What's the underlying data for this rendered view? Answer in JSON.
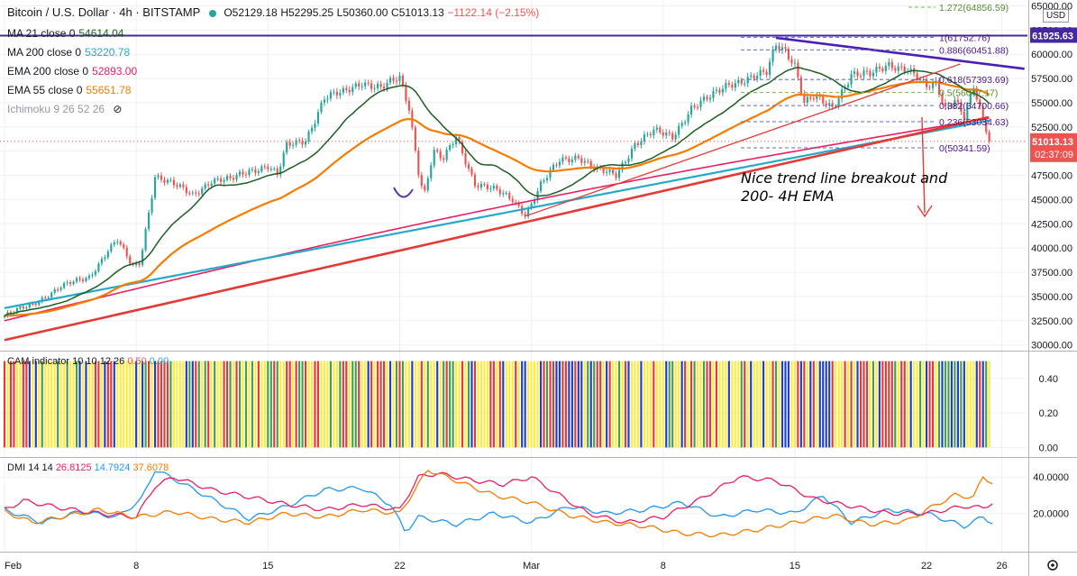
{
  "header": {
    "symbol": "Bitcoin / U.S. Dollar · 4h · BITSTAMP",
    "open": "O52129.18",
    "high": "H52295.25",
    "low": "L50360.00",
    "close": "C51013.13",
    "change": "−1122.14 (−2.15%)"
  },
  "indicators": [
    {
      "label": "MA 21 close 0",
      "value": "54614.04",
      "color": "#1b5e20"
    },
    {
      "label": "MA 200 close 0",
      "value": "53220.78",
      "color": "#26a9c9"
    },
    {
      "label": "EMA 200 close 0",
      "value": "52893.00",
      "color": "#e91e63"
    },
    {
      "label": "EMA 55 close 0",
      "value": "55651.78",
      "color": "#f57c00"
    },
    {
      "label": "Ichimoku 9 26 52 26",
      "value": "",
      "color": "#787b86"
    }
  ],
  "currency": "USD",
  "annotation": {
    "line1": "Nice trend line breakout and",
    "line2": "200- 4H EMA"
  },
  "price_badge": {
    "value": "51013.13",
    "countdown": "02:37:09",
    "color": "#ef5350"
  },
  "level_badge": {
    "value": "61925.63",
    "color": "#4527a0"
  },
  "cam": {
    "label": "CAM indicator 10 10 12 26",
    "v1": "0.50",
    "v2": "0.00"
  },
  "dmi": {
    "label": "DMI 14 14",
    "v1": "26.8125",
    "v2": "14.7924",
    "v3": "37.6078"
  },
  "colors": {
    "grid": "#eef0f3",
    "up": "#26a69a",
    "down": "#ef5350",
    "axis": "#131722",
    "fib_gold": "#7cb342",
    "fib_label": "#4a148c"
  },
  "chart_data": {
    "type": "candlestick",
    "title": "Bitcoin / U.S. Dollar · 4h · BITSTAMP",
    "x_tick_labels": [
      "Feb",
      "8",
      "15",
      "22",
      "Mar",
      "8",
      "15",
      "22",
      "26"
    ],
    "x_tick_days": [
      1,
      8,
      15,
      22,
      29,
      36,
      43,
      50,
      54
    ],
    "x_domain_days": [
      1,
      55.6
    ],
    "y_tick_values": [
      30000,
      32500,
      35000,
      37500,
      40000,
      42500,
      45000,
      47500,
      50000,
      52500,
      55000,
      57500,
      60000,
      62500,
      65000
    ],
    "ylim": [
      29500,
      65600
    ],
    "price_anchors": [
      [
        1.0,
        33000
      ],
      [
        2.5,
        34200
      ],
      [
        4.0,
        36000
      ],
      [
        5.5,
        37000
      ],
      [
        6.5,
        39800
      ],
      [
        7.0,
        40800
      ],
      [
        7.8,
        38000
      ],
      [
        8.2,
        38500
      ],
      [
        9.0,
        47500
      ],
      [
        10.0,
        46500
      ],
      [
        11.0,
        45500
      ],
      [
        12.0,
        47000
      ],
      [
        13.0,
        47000
      ],
      [
        14.0,
        48000
      ],
      [
        15.0,
        48500
      ],
      [
        15.5,
        47500
      ],
      [
        16.0,
        50500
      ],
      [
        17.0,
        51200
      ],
      [
        18.0,
        55500
      ],
      [
        19.0,
        56000
      ],
      [
        20.0,
        57200
      ],
      [
        21.0,
        56500
      ],
      [
        22.0,
        57500
      ],
      [
        22.5,
        54500
      ],
      [
        23.0,
        48000
      ],
      [
        23.3,
        45500
      ],
      [
        23.8,
        50000
      ],
      [
        24.3,
        49000
      ],
      [
        25.0,
        51500
      ],
      [
        26.0,
        46700
      ],
      [
        27.0,
        46000
      ],
      [
        28.0,
        45000
      ],
      [
        28.7,
        43500
      ],
      [
        29.5,
        46500
      ],
      [
        30.5,
        49000
      ],
      [
        31.5,
        49500
      ],
      [
        32.5,
        48000
      ],
      [
        33.5,
        47500
      ],
      [
        34.5,
        50800
      ],
      [
        35.5,
        52000
      ],
      [
        36.5,
        51500
      ],
      [
        37.5,
        54500
      ],
      [
        38.5,
        55500
      ],
      [
        39.5,
        57000
      ],
      [
        40.5,
        57500
      ],
      [
        41.5,
        58000
      ],
      [
        42.0,
        61000
      ],
      [
        42.5,
        60500
      ],
      [
        43.0,
        59000
      ],
      [
        43.5,
        55000
      ],
      [
        44.0,
        55500
      ],
      [
        45.0,
        54500
      ],
      [
        46.0,
        58000
      ],
      [
        47.0,
        57800
      ],
      [
        48.0,
        59000
      ],
      [
        49.0,
        58500
      ],
      [
        49.5,
        57500
      ],
      [
        50.0,
        56500
      ],
      [
        50.5,
        57000
      ],
      [
        51.0,
        54500
      ],
      [
        51.5,
        55500
      ],
      [
        52.0,
        53500
      ],
      [
        52.5,
        56500
      ],
      [
        53.0,
        53000
      ],
      [
        53.4,
        51013
      ]
    ],
    "fib_levels": [
      {
        "ratio": "1.272",
        "price": 64856.59
      },
      {
        "ratio": "1",
        "price": 61752.76
      },
      {
        "ratio": "0.886",
        "price": 60451.88
      },
      {
        "ratio": "0.618",
        "price": 57393.69
      },
      {
        "ratio": "0.5",
        "price": 56047.17
      },
      {
        "ratio": "0.382",
        "price": 54700.66
      },
      {
        "ratio": "0.236",
        "price": 53034.63
      },
      {
        "ratio": "0",
        "price": 50341.59
      }
    ],
    "horizontal_line": 61925.63,
    "trend_lines": [
      {
        "name": "uptrend-line",
        "from": [
          1.0,
          30500
        ],
        "to": [
          53.3,
          53500
        ]
      },
      {
        "name": "channel-upper-line",
        "from": [
          28.7,
          43300
        ],
        "to": [
          51.8,
          59000
        ]
      },
      {
        "name": "descending-resistance-line",
        "from": [
          42.0,
          61700
        ],
        "to": [
          55.2,
          58500
        ]
      }
    ],
    "cam_ylim": [
      -0.05,
      0.55
    ],
    "cam_ticks": [
      0.0,
      0.2,
      0.4
    ],
    "cam_tick_labels": [
      "0.00",
      "0.20",
      "0.40"
    ],
    "cam_bar_value": 0.5,
    "dmi_ylim": [
      0,
      50
    ],
    "dmi_ticks": [
      20,
      40
    ],
    "dmi_tick_labels": [
      "20.0000",
      "40.0000"
    ],
    "dmi_series": [
      {
        "name": "+DI",
        "color": "#2196f3",
        "anchors": [
          [
            1,
            22
          ],
          [
            3,
            15
          ],
          [
            5,
            21
          ],
          [
            7,
            18
          ],
          [
            8.3,
            28
          ],
          [
            9,
            44
          ],
          [
            10,
            39
          ],
          [
            12,
            28
          ],
          [
            14,
            17
          ],
          [
            16,
            24
          ],
          [
            18,
            33
          ],
          [
            20,
            34
          ],
          [
            21.5,
            25
          ],
          [
            22.3,
            10
          ],
          [
            23,
            18
          ],
          [
            25,
            14
          ],
          [
            27,
            20
          ],
          [
            29,
            15
          ],
          [
            31,
            24
          ],
          [
            33,
            20
          ],
          [
            35,
            22
          ],
          [
            37,
            26
          ],
          [
            39,
            18
          ],
          [
            41,
            22
          ],
          [
            43,
            20
          ],
          [
            44.5,
            30
          ],
          [
            46,
            15
          ],
          [
            48,
            22
          ],
          [
            50,
            20
          ],
          [
            52,
            13
          ],
          [
            53,
            18
          ],
          [
            53.5,
            15
          ]
        ]
      },
      {
        "name": "-DI",
        "color": "#e91e63",
        "anchors": [
          [
            1,
            22
          ],
          [
            2,
            27
          ],
          [
            4,
            23
          ],
          [
            6,
            20
          ],
          [
            8,
            18
          ],
          [
            9,
            35
          ],
          [
            10,
            40
          ],
          [
            12,
            33
          ],
          [
            14,
            29
          ],
          [
            16,
            25
          ],
          [
            18,
            22
          ],
          [
            20,
            25
          ],
          [
            22,
            22
          ],
          [
            23,
            40
          ],
          [
            24,
            42
          ],
          [
            26,
            38
          ],
          [
            27.5,
            36
          ],
          [
            29,
            40
          ],
          [
            30.5,
            30
          ],
          [
            32,
            20
          ],
          [
            34,
            15
          ],
          [
            36,
            18
          ],
          [
            38,
            28
          ],
          [
            40,
            40
          ],
          [
            42,
            38
          ],
          [
            44,
            28
          ],
          [
            46,
            24
          ],
          [
            48,
            20
          ],
          [
            50,
            20
          ],
          [
            52,
            24
          ],
          [
            53,
            23
          ],
          [
            53.5,
            26
          ]
        ]
      },
      {
        "name": "ADX",
        "color": "#f57c00",
        "anchors": [
          [
            1,
            21
          ],
          [
            2.5,
            15
          ],
          [
            4,
            18
          ],
          [
            6,
            22
          ],
          [
            8,
            18
          ],
          [
            10,
            21
          ],
          [
            12,
            17
          ],
          [
            14,
            15
          ],
          [
            16,
            20
          ],
          [
            18,
            18
          ],
          [
            20,
            22
          ],
          [
            22,
            20
          ],
          [
            23,
            36
          ],
          [
            23.5,
            44
          ],
          [
            25,
            38
          ],
          [
            27,
            30
          ],
          [
            29,
            26
          ],
          [
            31,
            19
          ],
          [
            33,
            15
          ],
          [
            35,
            13
          ],
          [
            37,
            9
          ],
          [
            39,
            8
          ],
          [
            41,
            11
          ],
          [
            43,
            15
          ],
          [
            45,
            19
          ],
          [
            47,
            14
          ],
          [
            49,
            16
          ],
          [
            50,
            22
          ],
          [
            51.5,
            30
          ],
          [
            52.5,
            29
          ],
          [
            53,
            40
          ],
          [
            53.5,
            37
          ]
        ]
      }
    ]
  }
}
